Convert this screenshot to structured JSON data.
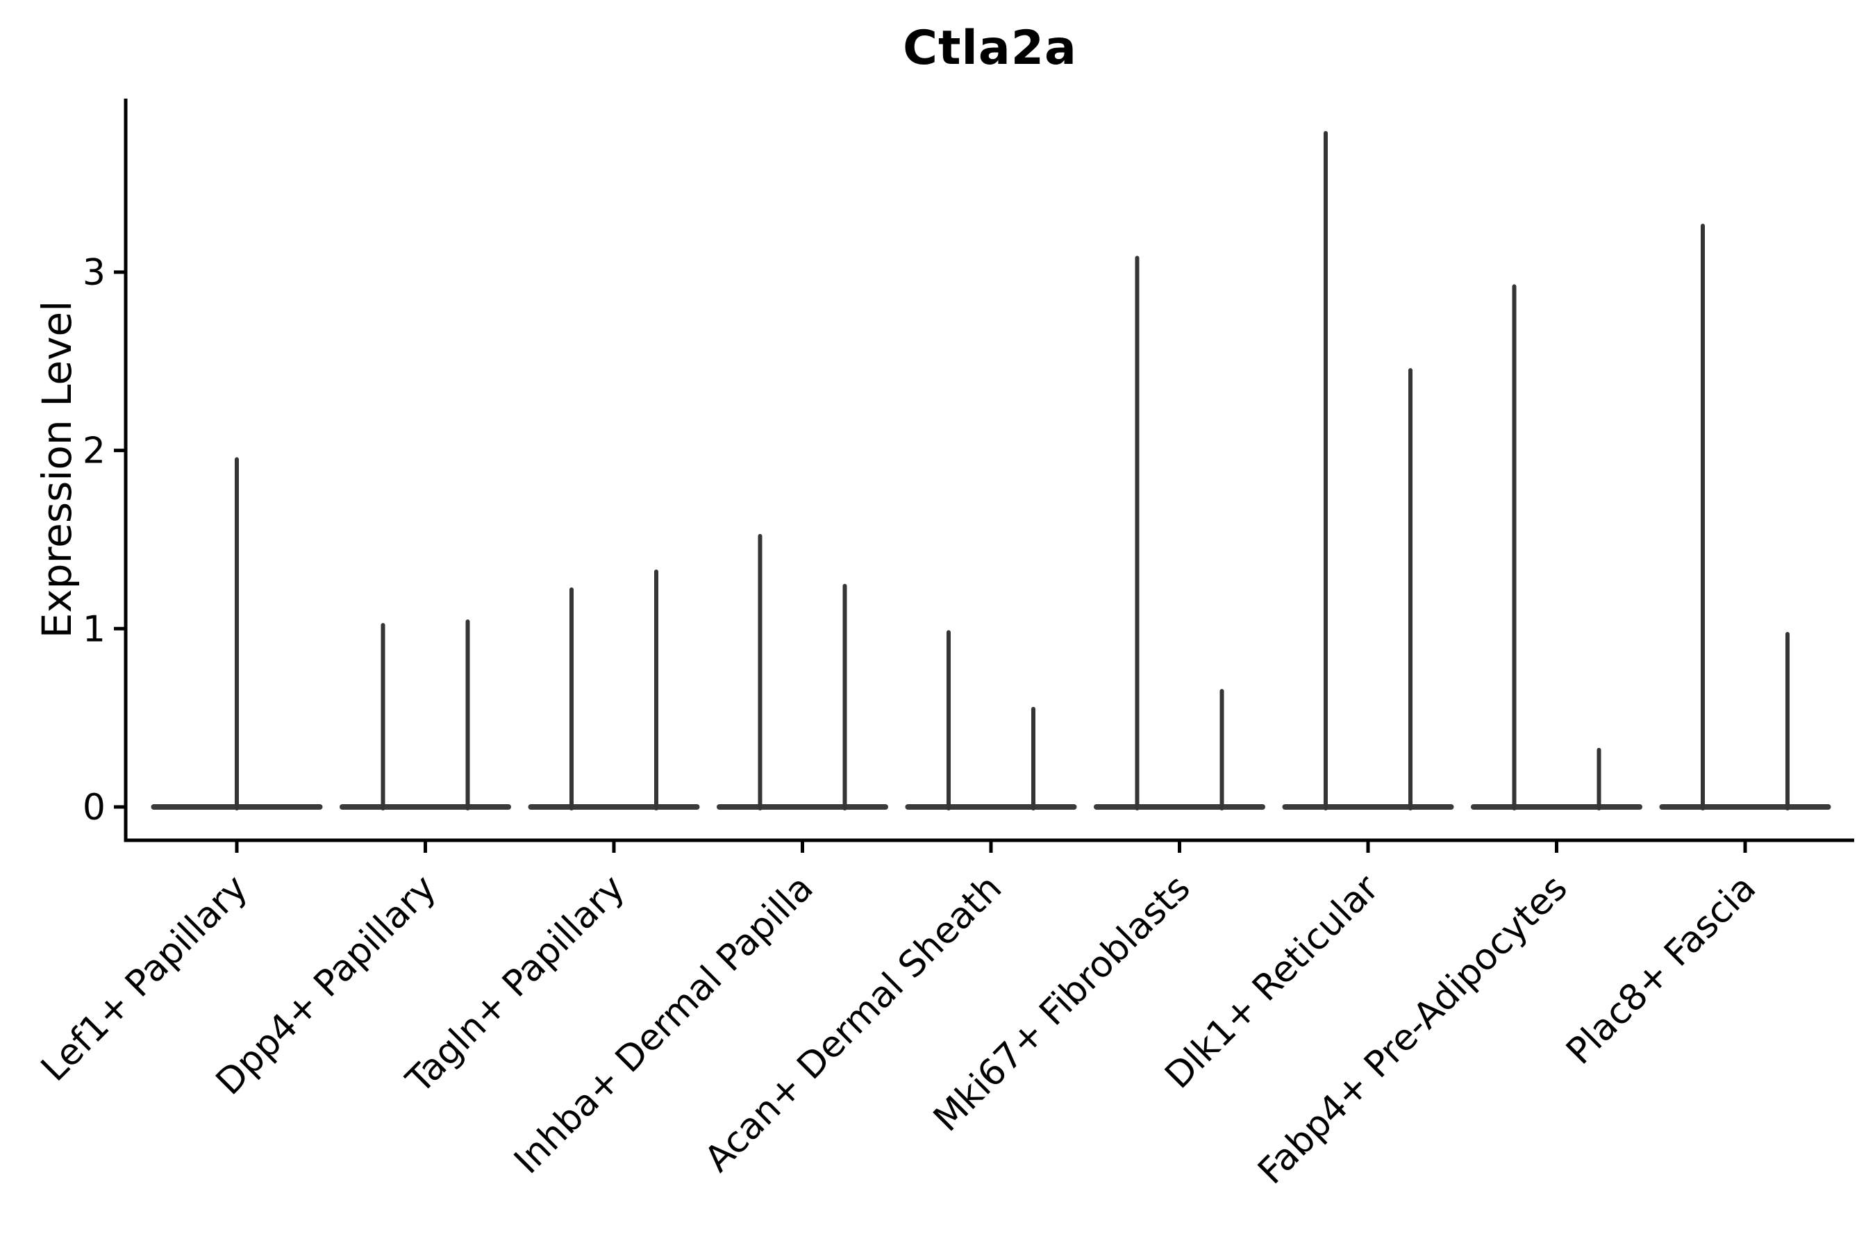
{
  "chart_data": {
    "type": "violin",
    "title": "Ctla2a",
    "ylabel": "Expression Level",
    "xlabel": "",
    "yticks": [
      0,
      1,
      2,
      3
    ],
    "ylim": [
      0,
      3.98
    ],
    "grid": false,
    "legend": "none",
    "categories": [
      "Lef1+ Papillary",
      "Dpp4+ Papillary",
      "Tagln+ Papillary",
      "Inhba+ Dermal Papilla",
      "Acan+ Dermal Sheath",
      "Mki67+ Fibroblasts",
      "Dlk1+ Reticular",
      "Fabp4+ Pre-Adipocytes",
      "Plac8+ Fascia"
    ],
    "violins": [
      {
        "category": "Lef1+ Papillary",
        "max_expression_values": [
          1.95
        ]
      },
      {
        "category": "Dpp4+ Papillary",
        "max_expression_values": [
          1.02,
          1.04
        ]
      },
      {
        "category": "Tagln+ Papillary",
        "max_expression_values": [
          1.22,
          1.32
        ]
      },
      {
        "category": "Inhba+ Dermal Papilla",
        "max_expression_values": [
          1.52,
          1.24
        ]
      },
      {
        "category": "Acan+ Dermal Sheath",
        "max_expression_values": [
          0.98,
          0.55
        ]
      },
      {
        "category": "Mki67+ Fibroblasts",
        "max_expression_values": [
          3.08,
          0.65
        ]
      },
      {
        "category": "Dlk1+ Reticular",
        "max_expression_values": [
          3.78,
          2.45
        ]
      },
      {
        "category": "Fabp4+ Pre-Adipocytes",
        "max_expression_values": [
          2.92,
          0.32
        ]
      },
      {
        "category": "Plac8+ Fascia",
        "max_expression_values": [
          3.26,
          0.97
        ]
      }
    ],
    "violin_description": "Each violin collapses to a thin vertical spike (max expression) over a wide flat base at y=0; categories with two values show two side-by-side spikes.",
    "colors": {
      "violin_stroke": "#353535",
      "violin_base": "#3a3a3a",
      "axis": "#000000",
      "text": "#000000",
      "background": "#ffffff"
    }
  }
}
